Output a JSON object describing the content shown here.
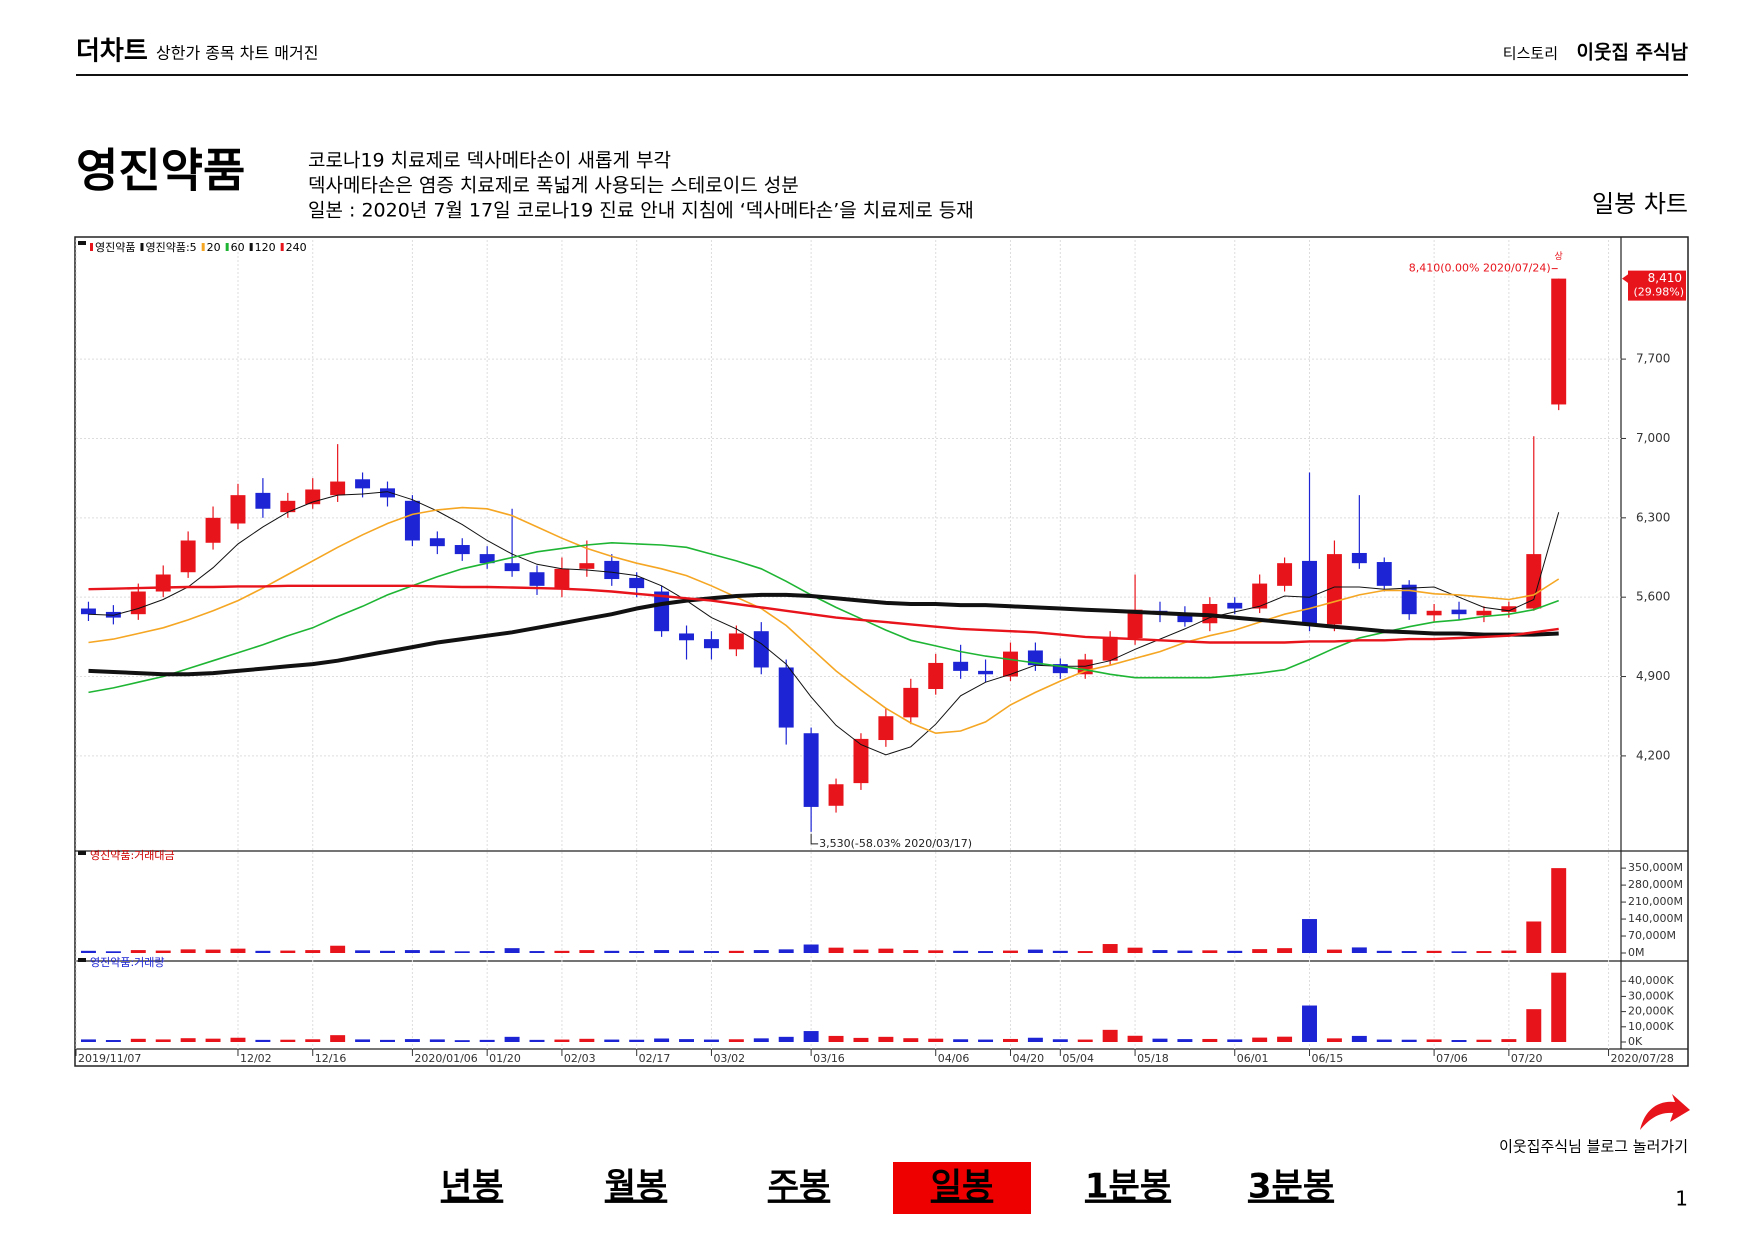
{
  "header": {
    "brand": "더차트",
    "tagline": "상한가 종목 차트 매거진",
    "platform": "티스토리",
    "author": "이웃집 주식남"
  },
  "stock": {
    "name": "영진약품",
    "notes": [
      "코로나19 치료제로 덱사메타손이 새롭게 부각",
      "덱사메타손은 염증 치료제로 폭넓게 사용되는 스테로이드 성분",
      "일본 : 2020년 7월 17일 코로나19 진료 안내 지침에 ‘덱사메타손’을 치료제로 등재"
    ],
    "chart_label": "일봉 차트"
  },
  "chart_data": [
    {
      "type": "candlestick",
      "legend": "영진약품",
      "up_color": "#e8141c",
      "down_color": "#1c24d4",
      "open": [
        5500,
        5470,
        5450,
        5650,
        5820,
        6080,
        6250,
        6520,
        6350,
        6420,
        6500,
        6640,
        6560,
        6450,
        6120,
        6060,
        5980,
        5900,
        5820,
        5680,
        5850,
        5920,
        5770,
        5650,
        5280,
        5230,
        5140,
        5300,
        4980,
        4400,
        3760,
        3960,
        4340,
        4540,
        4790,
        5030,
        4950,
        4900,
        5130,
        5010,
        4920,
        5040,
        5240,
        5480,
        5460,
        5370,
        5550,
        5500,
        5700,
        5920,
        5360,
        5990,
        5910,
        5710,
        5440,
        5490,
        5440,
        5470,
        5500,
        7300,
        null,
        null
      ],
      "high": [
        5560,
        5530,
        5720,
        5880,
        6180,
        6400,
        6600,
        6650,
        6520,
        6650,
        6950,
        6700,
        6620,
        6500,
        6180,
        6120,
        6050,
        6380,
        5880,
        5950,
        6100,
        5980,
        5820,
        5700,
        5350,
        5300,
        5350,
        5380,
        5050,
        4450,
        4000,
        4400,
        4620,
        4880,
        5100,
        5180,
        5050,
        5200,
        5200,
        5060,
        5100,
        5300,
        5800,
        5560,
        5520,
        5600,
        5600,
        5800,
        5950,
        6700,
        6100,
        6500,
        5950,
        5750,
        5540,
        5560,
        5520,
        5560,
        7020,
        8410,
        null,
        null
      ],
      "low": [
        5390,
        5360,
        5400,
        5600,
        5770,
        6020,
        6200,
        6300,
        6300,
        6380,
        6440,
        6480,
        6400,
        6050,
        5980,
        5920,
        5850,
        5780,
        5620,
        5600,
        5780,
        5700,
        5600,
        5250,
        5050,
        5050,
        5080,
        4920,
        4300,
        3530,
        3700,
        3900,
        4280,
        4480,
        4740,
        4880,
        4850,
        4860,
        4950,
        4880,
        4880,
        5000,
        5180,
        5380,
        5340,
        5300,
        5450,
        5460,
        5650,
        5300,
        5300,
        5850,
        5650,
        5400,
        5380,
        5400,
        5380,
        5420,
        5480,
        7250,
        null,
        null
      ],
      "close": [
        5450,
        5420,
        5650,
        5800,
        6100,
        6300,
        6500,
        6380,
        6450,
        6550,
        6620,
        6560,
        6480,
        6100,
        6050,
        5980,
        5900,
        5830,
        5700,
        5850,
        5900,
        5760,
        5680,
        5300,
        5220,
        5150,
        5280,
        4980,
        4450,
        3750,
        3950,
        4350,
        4550,
        4800,
        5020,
        4950,
        4920,
        5120,
        5000,
        4930,
        5050,
        5250,
        5490,
        5450,
        5380,
        5540,
        5500,
        5720,
        5900,
        5350,
        5980,
        5900,
        5700,
        5450,
        5480,
        5450,
        5480,
        5520,
        5980,
        8410,
        null,
        null
      ],
      "moving_averages": [
        {
          "name": "영진약품:5",
          "color": "#111111",
          "width": 1,
          "values": [
            5450,
            5440,
            5500,
            5580,
            5690,
            5860,
            6070,
            6220,
            6350,
            6440,
            6500,
            6510,
            6530,
            6460,
            6360,
            6240,
            6100,
            5980,
            5890,
            5850,
            5840,
            5820,
            5790,
            5700,
            5570,
            5420,
            5320,
            5190,
            5010,
            4720,
            4470,
            4300,
            4210,
            4280,
            4480,
            4730,
            4850,
            4920,
            5000,
            4990,
            4990,
            5040,
            5140,
            5230,
            5320,
            5420,
            5470,
            5520,
            5610,
            5600,
            5690,
            5690,
            5670,
            5680,
            5690,
            5600,
            5510,
            5480,
            5580,
            6350,
            null,
            null
          ]
        },
        {
          "name": "20",
          "color": "#f5a623",
          "width": 1.6,
          "values": [
            5200,
            5230,
            5280,
            5330,
            5400,
            5480,
            5570,
            5680,
            5800,
            5920,
            6040,
            6150,
            6250,
            6330,
            6370,
            6390,
            6380,
            6320,
            6220,
            6120,
            6030,
            5960,
            5900,
            5850,
            5790,
            5700,
            5600,
            5500,
            5350,
            5150,
            4950,
            4780,
            4620,
            4490,
            4400,
            4420,
            4500,
            4650,
            4760,
            4860,
            4950,
            5000,
            5060,
            5120,
            5200,
            5260,
            5310,
            5380,
            5450,
            5500,
            5560,
            5620,
            5660,
            5660,
            5630,
            5620,
            5600,
            5580,
            5620,
            5760,
            null,
            null
          ]
        },
        {
          "name": "60",
          "color": "#1fb534",
          "width": 1.6,
          "values": [
            4760,
            4800,
            4850,
            4900,
            4970,
            5040,
            5110,
            5180,
            5260,
            5330,
            5430,
            5520,
            5620,
            5700,
            5780,
            5850,
            5900,
            5950,
            6000,
            6030,
            6060,
            6080,
            6070,
            6060,
            6040,
            5980,
            5920,
            5850,
            5740,
            5620,
            5510,
            5410,
            5310,
            5220,
            5170,
            5120,
            5080,
            5050,
            5020,
            4990,
            4960,
            4920,
            4890,
            4890,
            4890,
            4890,
            4910,
            4930,
            4960,
            5050,
            5150,
            5240,
            5290,
            5340,
            5380,
            5400,
            5430,
            5450,
            5490,
            5570,
            null,
            null
          ]
        },
        {
          "name": "120",
          "color": "#111111",
          "width": 4,
          "values": [
            4950,
            4940,
            4930,
            4920,
            4920,
            4930,
            4950,
            4970,
            4990,
            5010,
            5040,
            5080,
            5120,
            5160,
            5200,
            5230,
            5260,
            5290,
            5330,
            5370,
            5410,
            5450,
            5500,
            5540,
            5570,
            5590,
            5610,
            5620,
            5620,
            5610,
            5590,
            5570,
            5550,
            5540,
            5540,
            5530,
            5530,
            5520,
            5510,
            5500,
            5490,
            5480,
            5470,
            5460,
            5450,
            5440,
            5420,
            5400,
            5380,
            5360,
            5340,
            5320,
            5300,
            5290,
            5280,
            5280,
            5270,
            5270,
            5270,
            5280,
            null,
            null
          ]
        },
        {
          "name": "240",
          "color": "#e8141c",
          "width": 2.4,
          "values": [
            5670,
            5675,
            5680,
            5685,
            5690,
            5690,
            5695,
            5695,
            5700,
            5700,
            5700,
            5700,
            5700,
            5700,
            5695,
            5690,
            5690,
            5685,
            5680,
            5675,
            5665,
            5650,
            5630,
            5610,
            5590,
            5570,
            5540,
            5510,
            5480,
            5450,
            5420,
            5400,
            5380,
            5360,
            5340,
            5320,
            5310,
            5300,
            5290,
            5270,
            5250,
            5240,
            5230,
            5220,
            5210,
            5200,
            5200,
            5200,
            5200,
            5210,
            5210,
            5220,
            5220,
            5230,
            5230,
            5240,
            5250,
            5260,
            5290,
            5320,
            null,
            null
          ]
        }
      ],
      "high_label": "8,410(0.00% 2020/07/24)",
      "low_label": "3,530(-58.03% 2020/03/17)",
      "last_label": "8,410",
      "last_change": "(29.98%)",
      "limit_marker": "상",
      "ylim": [
        3370,
        8680
      ],
      "yticks": [
        {
          "value": 4200,
          "label": "4,200"
        },
        {
          "value": 4900,
          "label": "4,900"
        },
        {
          "value": 5600,
          "label": "5,600"
        },
        {
          "value": 6300,
          "label": "6,300"
        },
        {
          "value": 7000,
          "label": "7,000"
        },
        {
          "value": 7700,
          "label": "7,700"
        }
      ],
      "grid": true
    },
    {
      "type": "bar",
      "title": "영진약품:거래대금",
      "values": [
        9000,
        7000,
        12000,
        10000,
        15000,
        14000,
        18000,
        9000,
        10000,
        12000,
        30000,
        11000,
        9000,
        12000,
        10000,
        7000,
        8000,
        20000,
        8000,
        9000,
        12000,
        9000,
        8000,
        12000,
        10000,
        8000,
        9000,
        12000,
        15000,
        35000,
        22000,
        14000,
        18000,
        12000,
        11000,
        9000,
        8000,
        10000,
        14000,
        9000,
        8000,
        37000,
        22000,
        12000,
        10000,
        11000,
        9000,
        16000,
        20000,
        140000,
        14000,
        23000,
        9000,
        8000,
        9000,
        7000,
        8000,
        10000,
        130000,
        350000,
        null,
        null
      ],
      "ylim": [
        0,
        400000
      ],
      "yticks": [
        {
          "value": 0,
          "label": "0M"
        },
        {
          "value": 70000,
          "label": "70,000M"
        },
        {
          "value": 140000,
          "label": "140,000M"
        },
        {
          "value": 210000,
          "label": "210,000M"
        },
        {
          "value": 280000,
          "label": "280,000M"
        },
        {
          "value": 350000,
          "label": "350,000M"
        }
      ]
    },
    {
      "type": "bar",
      "title": "영진약품:거래량",
      "values": [
        1700,
        1300,
        2100,
        1700,
        2500,
        2200,
        2800,
        1400,
        1500,
        1800,
        4500,
        1700,
        1400,
        1900,
        1700,
        1200,
        1400,
        3400,
        1400,
        1600,
        2100,
        1600,
        1500,
        2300,
        1900,
        1600,
        1800,
        2400,
        3400,
        7200,
        4000,
        2700,
        3400,
        2500,
        2200,
        1800,
        1600,
        2000,
        2800,
        1800,
        1600,
        8000,
        4100,
        2200,
        1900,
        2000,
        1700,
        2900,
        3500,
        24000,
        2400,
        4000,
        1600,
        1500,
        1700,
        1300,
        1500,
        1900,
        21600,
        45600,
        null,
        null
      ],
      "ylim": [
        0,
        50000
      ],
      "yticks": [
        {
          "value": 0,
          "label": "0K"
        },
        {
          "value": 10000,
          "label": "10,000K"
        },
        {
          "value": 20000,
          "label": "20,000K"
        },
        {
          "value": 30000,
          "label": "30,000K"
        },
        {
          "value": 40000,
          "label": "40,000K"
        }
      ],
      "categories": [
        "2019/11/07",
        null,
        null,
        null,
        null,
        null,
        "12/02",
        null,
        null,
        "12/16",
        null,
        null,
        null,
        "2020/01/06",
        null,
        null,
        "01/20",
        null,
        null,
        "02/03",
        null,
        null,
        "02/17",
        null,
        null,
        "03/02",
        null,
        null,
        null,
        "03/16",
        null,
        null,
        null,
        null,
        "04/06",
        null,
        null,
        "04/20",
        null,
        "05/04",
        null,
        null,
        "05/18",
        null,
        null,
        null,
        "06/01",
        null,
        null,
        "06/15",
        null,
        null,
        null,
        null,
        "07/06",
        null,
        null,
        "07/20",
        null,
        null,
        null,
        "2020/07/28"
      ]
    }
  ],
  "footer": {
    "blog_link": "이웃집주식님 블로그 놀러가기",
    "nav": [
      "년봉",
      "월봉",
      "주봉",
      "일봉",
      "1분봉",
      "3분봉"
    ],
    "nav_active": 3,
    "page": 1
  }
}
